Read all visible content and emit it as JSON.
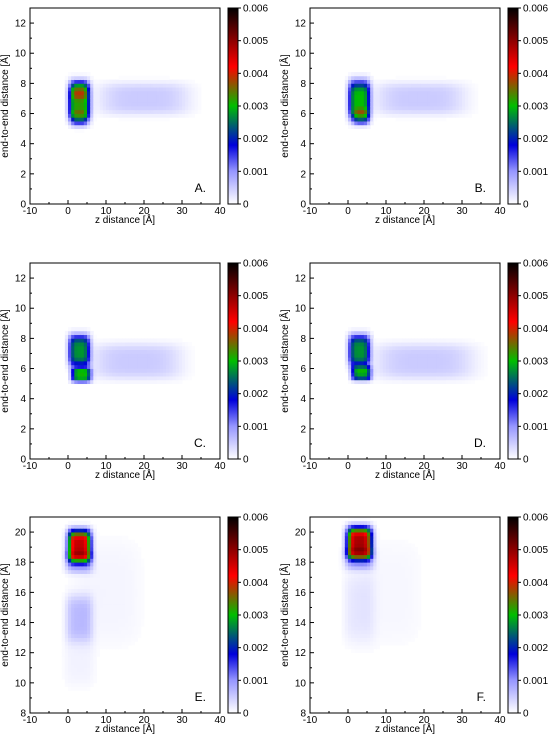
{
  "colorbar": {
    "ticks": [
      "0",
      "0.001",
      "0.002",
      "0.003",
      "0.004",
      "0.005",
      "0.006"
    ],
    "range": [
      0,
      0.006
    ],
    "colors": [
      "#ffffff",
      "#0000dd",
      "#00aa00",
      "#ff0000",
      "#000000"
    ]
  },
  "chart_data": [
    {
      "type": "heatmap",
      "panel": "A.",
      "xlabel": "z distance [Å]",
      "ylabel": "end-to-end distance [Å]",
      "xlim": [
        -10,
        40
      ],
      "ylim": [
        0,
        13
      ],
      "xticks": [
        "-10",
        "0",
        "10",
        "20",
        "30",
        "40"
      ],
      "yticks": [
        "0",
        "2",
        "4",
        "6",
        "8",
        "10",
        "12"
      ],
      "blobs": [
        {
          "x": 3,
          "y": 6.8,
          "sx": 2.4,
          "sy": 1.1,
          "value": 0.0032
        },
        {
          "x": 3,
          "y": 7.6,
          "sx": 1.8,
          "sy": 0.5,
          "value": 0.0008
        },
        {
          "x": 3,
          "y": 5.7,
          "sx": 1.8,
          "sy": 0.45,
          "value": 0.0008
        },
        {
          "x": 20,
          "y": 7,
          "sx": 10,
          "sy": 0.9,
          "value": 0.0005
        }
      ]
    },
    {
      "type": "heatmap",
      "panel": "B.",
      "xlabel": "z distance [Å]",
      "ylabel": "end-to-end distance [Å]",
      "xlim": [
        -10,
        40
      ],
      "ylim": [
        0,
        13
      ],
      "xticks": [
        "-10",
        "0",
        "10",
        "20",
        "30",
        "40"
      ],
      "yticks": [
        "0",
        "2",
        "4",
        "6",
        "8",
        "10",
        "12"
      ],
      "blobs": [
        {
          "x": 3,
          "y": 6.9,
          "sx": 2.4,
          "sy": 1.1,
          "value": 0.003
        },
        {
          "x": 3.5,
          "y": 5.8,
          "sx": 1.8,
          "sy": 0.45,
          "value": 0.0012
        },
        {
          "x": 19,
          "y": 7,
          "sx": 10,
          "sy": 0.9,
          "value": 0.0005
        }
      ]
    },
    {
      "type": "heatmap",
      "panel": "C.",
      "xlabel": "z distance [Å]",
      "ylabel": "end-to-end distance [Å]",
      "xlim": [
        -10,
        40
      ],
      "ylim": [
        0,
        13
      ],
      "xticks": [
        "-10",
        "0",
        "10",
        "20",
        "30",
        "40"
      ],
      "yticks": [
        "0",
        "2",
        "4",
        "6",
        "8",
        "10",
        "12"
      ],
      "blobs": [
        {
          "x": 3,
          "y": 7.2,
          "sx": 2.4,
          "sy": 0.9,
          "value": 0.0027
        },
        {
          "x": 3.5,
          "y": 5.6,
          "sx": 2.2,
          "sy": 0.4,
          "value": 0.003
        },
        {
          "x": 18,
          "y": 6.5,
          "sx": 10,
          "sy": 1,
          "value": 0.0005
        }
      ]
    },
    {
      "type": "heatmap",
      "panel": "D.",
      "xlabel": "z distance [Å]",
      "ylabel": "end-to-end distance [Å]",
      "xlim": [
        -10,
        40
      ],
      "ylim": [
        0,
        13
      ],
      "xticks": [
        "-10",
        "0",
        "10",
        "20",
        "30",
        "40"
      ],
      "yticks": [
        "0",
        "2",
        "4",
        "6",
        "8",
        "10",
        "12"
      ],
      "blobs": [
        {
          "x": 3,
          "y": 7.2,
          "sx": 2.4,
          "sy": 0.9,
          "value": 0.0027
        },
        {
          "x": 3.5,
          "y": 5.7,
          "sx": 2.2,
          "sy": 0.4,
          "value": 0.0028
        },
        {
          "x": 20,
          "y": 6.5,
          "sx": 11,
          "sy": 1,
          "value": 0.0005
        }
      ]
    },
    {
      "type": "heatmap",
      "panel": "E.",
      "xlabel": "z distance [Å]",
      "ylabel": "end-to-end distance [Å]",
      "xlim": [
        -10,
        40
      ],
      "ylim": [
        8,
        21
      ],
      "xticks": [
        "-10",
        "0",
        "10",
        "20",
        "30",
        "40"
      ],
      "yticks": [
        "8",
        "10",
        "12",
        "14",
        "16",
        "18",
        "20"
      ],
      "blobs": [
        {
          "x": 3,
          "y": 19.1,
          "sx": 2.6,
          "sy": 0.9,
          "value": 0.0046
        },
        {
          "x": 3,
          "y": 18,
          "sx": 3,
          "sy": 0.6,
          "value": 0.0008
        },
        {
          "x": 3,
          "y": 14.3,
          "sx": 3,
          "sy": 1.3,
          "value": 0.0006
        },
        {
          "x": 3,
          "y": 11.5,
          "sx": 3.5,
          "sy": 1.5,
          "value": 0.00012
        },
        {
          "x": 10,
          "y": 16,
          "sx": 8,
          "sy": 3,
          "value": 0.0001
        }
      ]
    },
    {
      "type": "heatmap",
      "panel": "F.",
      "xlabel": "z distance [Å]",
      "ylabel": "end-to-end distance [Å]",
      "xlim": [
        -10,
        40
      ],
      "ylim": [
        8,
        21
      ],
      "xticks": [
        "-10",
        "0",
        "10",
        "20",
        "30",
        "40"
      ],
      "yticks": [
        "8",
        "10",
        "12",
        "14",
        "16",
        "18",
        "20"
      ],
      "blobs": [
        {
          "x": 3,
          "y": 19.3,
          "sx": 2.8,
          "sy": 0.9,
          "value": 0.0048
        },
        {
          "x": 3,
          "y": 18.2,
          "sx": 3.2,
          "sy": 0.6,
          "value": 0.0008
        },
        {
          "x": 3,
          "y": 15,
          "sx": 3.5,
          "sy": 2,
          "value": 0.0002
        },
        {
          "x": 10,
          "y": 16,
          "sx": 8,
          "sy": 3,
          "value": 8e-05
        }
      ]
    }
  ]
}
